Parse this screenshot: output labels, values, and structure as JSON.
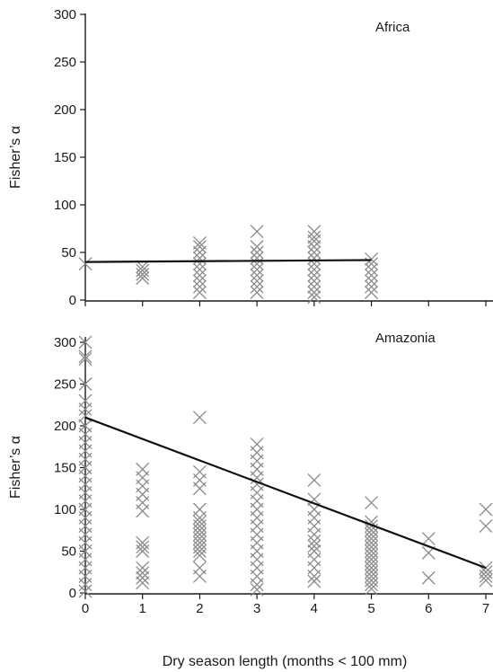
{
  "chart_data": [
    {
      "type": "scatter",
      "panel_label": "Africa",
      "ylabel": "Fisher’s α",
      "xlabel": "",
      "xlim": [
        0,
        7
      ],
      "ylim": [
        0,
        300
      ],
      "x_ticks": [
        "0",
        "1",
        "2",
        "3",
        "4",
        "5",
        "6",
        "7"
      ],
      "x_tick_labels_shown": false,
      "y_ticks": [
        "0",
        "50",
        "100",
        "150",
        "200",
        "250",
        "300"
      ],
      "grid": false,
      "marker": "x",
      "marker_color": "#8a8a8a",
      "trendline": {
        "x": [
          0,
          5
        ],
        "y": [
          40,
          42
        ]
      },
      "points": [
        [
          0,
          38
        ],
        [
          1,
          23
        ],
        [
          1,
          27
        ],
        [
          1,
          31
        ],
        [
          1,
          35
        ],
        [
          2,
          8
        ],
        [
          2,
          14
        ],
        [
          2,
          20
        ],
        [
          2,
          26
        ],
        [
          2,
          32
        ],
        [
          2,
          38
        ],
        [
          2,
          44
        ],
        [
          2,
          50
        ],
        [
          2,
          56
        ],
        [
          2,
          60
        ],
        [
          3,
          8
        ],
        [
          3,
          14
        ],
        [
          3,
          20
        ],
        [
          3,
          26
        ],
        [
          3,
          32
        ],
        [
          3,
          38
        ],
        [
          3,
          44
        ],
        [
          3,
          50
        ],
        [
          3,
          56
        ],
        [
          3,
          72
        ],
        [
          4,
          3
        ],
        [
          4,
          8
        ],
        [
          4,
          14
        ],
        [
          4,
          20
        ],
        [
          4,
          26
        ],
        [
          4,
          32
        ],
        [
          4,
          38
        ],
        [
          4,
          44
        ],
        [
          4,
          50
        ],
        [
          4,
          56
        ],
        [
          4,
          62
        ],
        [
          4,
          66
        ],
        [
          4,
          72
        ],
        [
          5,
          8
        ],
        [
          5,
          14
        ],
        [
          5,
          20
        ],
        [
          5,
          26
        ],
        [
          5,
          32
        ],
        [
          5,
          38
        ],
        [
          5,
          43
        ]
      ]
    },
    {
      "type": "scatter",
      "panel_label": "Amazonia",
      "ylabel": "Fisher’s α",
      "xlabel": "Dry season length (months < 100 mm)",
      "xlim": [
        0,
        7
      ],
      "ylim": [
        0,
        300
      ],
      "x_ticks": [
        "0",
        "1",
        "2",
        "3",
        "4",
        "5",
        "6",
        "7"
      ],
      "x_tick_labels_shown": true,
      "y_ticks": [
        "0",
        "50",
        "100",
        "150",
        "200",
        "250",
        "300"
      ],
      "grid": false,
      "marker": "x",
      "marker_color": "#8a8a8a",
      "trendline": {
        "x": [
          0,
          7
        ],
        "y": [
          210,
          30
        ]
      },
      "points": [
        [
          0,
          300
        ],
        [
          0,
          283
        ],
        [
          0,
          280
        ],
        [
          0,
          250
        ],
        [
          0,
          230
        ],
        [
          0,
          220
        ],
        [
          0,
          212
        ],
        [
          0,
          200
        ],
        [
          0,
          190
        ],
        [
          0,
          180
        ],
        [
          0,
          170
        ],
        [
          0,
          160
        ],
        [
          0,
          150
        ],
        [
          0,
          140
        ],
        [
          0,
          130
        ],
        [
          0,
          120
        ],
        [
          0,
          110
        ],
        [
          0,
          100
        ],
        [
          0,
          90
        ],
        [
          0,
          80
        ],
        [
          0,
          70
        ],
        [
          0,
          60
        ],
        [
          0,
          50
        ],
        [
          0,
          40
        ],
        [
          0,
          30
        ],
        [
          0,
          20
        ],
        [
          0,
          10
        ],
        [
          0,
          2
        ],
        [
          1,
          148
        ],
        [
          1,
          138
        ],
        [
          1,
          128
        ],
        [
          1,
          118
        ],
        [
          1,
          108
        ],
        [
          1,
          98
        ],
        [
          1,
          60
        ],
        [
          1,
          55
        ],
        [
          1,
          50
        ],
        [
          1,
          30
        ],
        [
          1,
          24
        ],
        [
          1,
          18
        ],
        [
          1,
          12
        ],
        [
          2,
          210
        ],
        [
          2,
          145
        ],
        [
          2,
          135
        ],
        [
          2,
          125
        ],
        [
          2,
          100
        ],
        [
          2,
          90
        ],
        [
          2,
          85
        ],
        [
          2,
          80
        ],
        [
          2,
          75
        ],
        [
          2,
          70
        ],
        [
          2,
          65
        ],
        [
          2,
          60
        ],
        [
          2,
          55
        ],
        [
          2,
          50
        ],
        [
          2,
          45
        ],
        [
          2,
          30
        ],
        [
          2,
          20
        ],
        [
          3,
          178
        ],
        [
          3,
          168
        ],
        [
          3,
          158
        ],
        [
          3,
          148
        ],
        [
          3,
          138
        ],
        [
          3,
          130
        ],
        [
          3,
          120
        ],
        [
          3,
          110
        ],
        [
          3,
          100
        ],
        [
          3,
          90
        ],
        [
          3,
          80
        ],
        [
          3,
          70
        ],
        [
          3,
          60
        ],
        [
          3,
          50
        ],
        [
          3,
          40
        ],
        [
          3,
          30
        ],
        [
          3,
          20
        ],
        [
          3,
          10
        ],
        [
          3,
          4
        ],
        [
          4,
          135
        ],
        [
          4,
          112
        ],
        [
          4,
          100
        ],
        [
          4,
          90
        ],
        [
          4,
          80
        ],
        [
          4,
          70
        ],
        [
          4,
          62
        ],
        [
          4,
          56
        ],
        [
          4,
          50
        ],
        [
          4,
          40
        ],
        [
          4,
          30
        ],
        [
          4,
          20
        ],
        [
          4,
          14
        ],
        [
          5,
          108
        ],
        [
          5,
          85
        ],
        [
          5,
          80
        ],
        [
          5,
          75
        ],
        [
          5,
          70
        ],
        [
          5,
          65
        ],
        [
          5,
          60
        ],
        [
          5,
          55
        ],
        [
          5,
          50
        ],
        [
          5,
          45
        ],
        [
          5,
          40
        ],
        [
          5,
          35
        ],
        [
          5,
          30
        ],
        [
          5,
          25
        ],
        [
          5,
          20
        ],
        [
          5,
          15
        ],
        [
          5,
          10
        ],
        [
          5,
          5
        ],
        [
          6,
          65
        ],
        [
          6,
          48
        ],
        [
          6,
          18
        ],
        [
          7,
          100
        ],
        [
          7,
          80
        ],
        [
          7,
          30
        ],
        [
          7,
          25
        ],
        [
          7,
          20
        ],
        [
          7,
          15
        ]
      ]
    }
  ]
}
